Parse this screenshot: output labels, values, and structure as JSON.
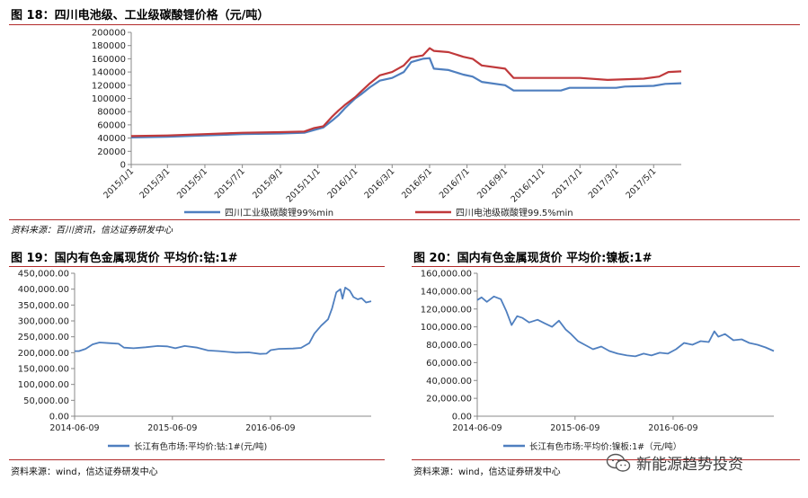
{
  "fig18": {
    "title": "图 18：四川电池级、工业级碳酸锂价格（元/吨）",
    "source": "资料来源：百川资讯，信达证券研发中心"
  },
  "fig19": {
    "title": "图 19：国内有色金属现货价 平均价:钴:1#",
    "source": "资料来源：wind，信达证券研发中心"
  },
  "fig20": {
    "title": "图 20：国内有色金属现货价 平均价:镍板:1#",
    "source": "资料来源：wind，信达证券研发中心"
  },
  "watermark": {
    "text": "新能源趋势投资"
  },
  "chart_data": [
    {
      "type": "line",
      "title": "图 18：四川电池级、工业级碳酸锂价格（元/吨）",
      "x_tick_labels": [
        "2015/1/1",
        "2015/3/1",
        "2015/5/1",
        "2015/7/1",
        "2015/9/1",
        "2015/11/1",
        "2016/1/1",
        "2016/3/1",
        "2016/5/1",
        "2016/7/1",
        "2016/9/1",
        "2016/11/1",
        "2017/1/1",
        "2017/3/1",
        "2017/5/1"
      ],
      "x_range": [
        "2015-01-01",
        "2017-06-15"
      ],
      "y_tick_labels": [
        "0",
        "20000",
        "40000",
        "60000",
        "80000",
        "100000",
        "120000",
        "140000",
        "160000",
        "180000",
        "200000"
      ],
      "ylim": [
        0,
        200000
      ],
      "grid": false,
      "legend_position": "bottom",
      "series": [
        {
          "name": "四川工业级碳酸锂99%min",
          "color": "#4f7fbf",
          "points": [
            [
              "2015-01-01",
              41000
            ],
            [
              "2015-03-01",
              42000
            ],
            [
              "2015-05-01",
              44000
            ],
            [
              "2015-07-01",
              46000
            ],
            [
              "2015-09-01",
              47000
            ],
            [
              "2015-10-10",
              48000
            ],
            [
              "2015-10-25",
              52000
            ],
            [
              "2015-11-10",
              56000
            ],
            [
              "2015-11-25",
              67000
            ],
            [
              "2015-12-05",
              75000
            ],
            [
              "2015-12-15",
              85000
            ],
            [
              "2016-01-01",
              100000
            ],
            [
              "2016-01-10",
              106000
            ],
            [
              "2016-01-25",
              117000
            ],
            [
              "2016-02-10",
              127000
            ],
            [
              "2016-03-01",
              131000
            ],
            [
              "2016-03-20",
              140000
            ],
            [
              "2016-04-01",
              155000
            ],
            [
              "2016-04-20",
              160000
            ],
            [
              "2016-05-01",
              161000
            ],
            [
              "2016-05-08",
              145000
            ],
            [
              "2016-06-01",
              143000
            ],
            [
              "2016-06-25",
              136000
            ],
            [
              "2016-07-10",
              133000
            ],
            [
              "2016-07-25",
              125000
            ],
            [
              "2016-09-01",
              120000
            ],
            [
              "2016-09-15",
              112000
            ],
            [
              "2016-12-01",
              112000
            ],
            [
              "2016-12-15",
              116000
            ],
            [
              "2017-03-01",
              116000
            ],
            [
              "2017-03-15",
              118000
            ],
            [
              "2017-05-01",
              119000
            ],
            [
              "2017-05-20",
              122000
            ],
            [
              "2017-06-15",
              123000
            ]
          ]
        },
        {
          "name": "四川电池级碳酸锂99.5%min",
          "color": "#c0393b",
          "points": [
            [
              "2015-01-01",
              43000
            ],
            [
              "2015-03-01",
              44000
            ],
            [
              "2015-05-01",
              46000
            ],
            [
              "2015-07-01",
              48000
            ],
            [
              "2015-09-01",
              49000
            ],
            [
              "2015-10-10",
              50000
            ],
            [
              "2015-10-25",
              55000
            ],
            [
              "2015-11-10",
              58000
            ],
            [
              "2015-11-25",
              73000
            ],
            [
              "2015-12-05",
              82000
            ],
            [
              "2015-12-15",
              90000
            ],
            [
              "2016-01-01",
              102000
            ],
            [
              "2016-01-10",
              110000
            ],
            [
              "2016-01-25",
              123000
            ],
            [
              "2016-02-10",
              135000
            ],
            [
              "2016-03-01",
              140000
            ],
            [
              "2016-03-20",
              150000
            ],
            [
              "2016-04-01",
              162000
            ],
            [
              "2016-04-20",
              165000
            ],
            [
              "2016-05-01",
              176000
            ],
            [
              "2016-05-08",
              172000
            ],
            [
              "2016-06-01",
              170000
            ],
            [
              "2016-06-25",
              163000
            ],
            [
              "2016-07-10",
              160000
            ],
            [
              "2016-07-25",
              150000
            ],
            [
              "2016-09-01",
              145000
            ],
            [
              "2016-09-15",
              131000
            ],
            [
              "2016-12-01",
              131000
            ],
            [
              "2017-01-01",
              131000
            ],
            [
              "2017-02-15",
              128000
            ],
            [
              "2017-04-15",
              130000
            ],
            [
              "2017-05-10",
              133000
            ],
            [
              "2017-05-25",
              140000
            ],
            [
              "2017-06-15",
              141000
            ]
          ]
        }
      ]
    },
    {
      "type": "line",
      "title": "图 19：国内有色金属现货价 平均价:钴:1#",
      "x_tick_labels": [
        "2014-06-09",
        "2015-06-09",
        "2016-06-09"
      ],
      "x_range": [
        "2014-06-09",
        "2017-06-20"
      ],
      "y_tick_labels": [
        "0.00",
        "50,000.00",
        "100,000.00",
        "150,000.00",
        "200,000.00",
        "250,000.00",
        "300,000.00",
        "350,000.00",
        "400,000.00",
        "450,000.00"
      ],
      "ylim": [
        0,
        450000
      ],
      "grid": false,
      "legend_position": "bottom",
      "series": [
        {
          "name": "长江有色市场:平均价:钴:1#(元/吨)",
          "color": "#4f7fbf",
          "points": [
            [
              "2014-06-09",
              205000
            ],
            [
              "2014-06-25",
              205000
            ],
            [
              "2014-07-20",
              212000
            ],
            [
              "2014-08-15",
              226000
            ],
            [
              "2014-09-10",
              232000
            ],
            [
              "2014-10-15",
              230000
            ],
            [
              "2014-11-20",
              228000
            ],
            [
              "2014-12-10",
              216000
            ],
            [
              "2015-01-15",
              214000
            ],
            [
              "2015-03-01",
              217000
            ],
            [
              "2015-04-15",
              221000
            ],
            [
              "2015-05-20",
              220000
            ],
            [
              "2015-06-20",
              214000
            ],
            [
              "2015-07-25",
              221000
            ],
            [
              "2015-09-10",
              216000
            ],
            [
              "2015-10-20",
              207000
            ],
            [
              "2015-12-01",
              205000
            ],
            [
              "2016-02-01",
              200000
            ],
            [
              "2016-03-20",
              201000
            ],
            [
              "2016-05-01",
              196000
            ],
            [
              "2016-05-25",
              197000
            ],
            [
              "2016-06-10",
              208000
            ],
            [
              "2016-07-10",
              212000
            ],
            [
              "2016-09-01",
              213000
            ],
            [
              "2016-10-01",
              215000
            ],
            [
              "2016-11-01",
              230000
            ],
            [
              "2016-11-20",
              260000
            ],
            [
              "2016-12-15",
              285000
            ],
            [
              "2017-01-10",
              305000
            ],
            [
              "2017-01-25",
              340000
            ],
            [
              "2017-02-10",
              390000
            ],
            [
              "2017-02-25",
              400000
            ],
            [
              "2017-03-05",
              370000
            ],
            [
              "2017-03-15",
              405000
            ],
            [
              "2017-04-01",
              395000
            ],
            [
              "2017-04-15",
              375000
            ],
            [
              "2017-05-01",
              368000
            ],
            [
              "2017-05-15",
              372000
            ],
            [
              "2017-06-01",
              358000
            ],
            [
              "2017-06-20",
              362000
            ]
          ]
        }
      ]
    },
    {
      "type": "line",
      "title": "图 20：国内有色金属现货价 平均价:镍板:1#",
      "x_tick_labels": [
        "2014-06-09",
        "2015-06-09",
        "2016-06-09"
      ],
      "x_range": [
        "2014-06-09",
        "2017-06-20"
      ],
      "y_tick_labels": [
        "0.00",
        "20,000.00",
        "40,000.00",
        "60,000.00",
        "80,000.00",
        "100,000.00",
        "120,000.00",
        "140,000.00",
        "160,000.00"
      ],
      "ylim": [
        0,
        160000
      ],
      "grid": false,
      "legend_position": "bottom",
      "series": [
        {
          "name": "长江有色市场:平均价:镍板:1#（元/吨）",
          "color": "#4f7fbf",
          "points": [
            [
              "2014-06-09",
              130000
            ],
            [
              "2014-06-25",
              133000
            ],
            [
              "2014-07-15",
              128000
            ],
            [
              "2014-08-10",
              134000
            ],
            [
              "2014-09-05",
              131000
            ],
            [
              "2014-09-25",
              118000
            ],
            [
              "2014-10-15",
              102000
            ],
            [
              "2014-11-05",
              112000
            ],
            [
              "2014-11-25",
              110000
            ],
            [
              "2014-12-20",
              105000
            ],
            [
              "2015-01-20",
              108000
            ],
            [
              "2015-02-15",
              104000
            ],
            [
              "2015-03-15",
              100000
            ],
            [
              "2015-04-10",
              107000
            ],
            [
              "2015-05-05",
              97000
            ],
            [
              "2015-05-25",
              92000
            ],
            [
              "2015-06-20",
              84000
            ],
            [
              "2015-07-15",
              80000
            ],
            [
              "2015-08-15",
              75000
            ],
            [
              "2015-09-15",
              78000
            ],
            [
              "2015-10-15",
              73000
            ],
            [
              "2015-11-15",
              70000
            ],
            [
              "2015-12-20",
              68000
            ],
            [
              "2016-01-20",
              67000
            ],
            [
              "2016-02-20",
              70000
            ],
            [
              "2016-03-20",
              68000
            ],
            [
              "2016-04-20",
              71000
            ],
            [
              "2016-05-20",
              70000
            ],
            [
              "2016-06-20",
              75000
            ],
            [
              "2016-07-20",
              82000
            ],
            [
              "2016-08-20",
              80000
            ],
            [
              "2016-09-20",
              84000
            ],
            [
              "2016-10-20",
              83000
            ],
            [
              "2016-11-10",
              95000
            ],
            [
              "2016-11-25",
              89000
            ],
            [
              "2016-12-20",
              92000
            ],
            [
              "2017-01-20",
              85000
            ],
            [
              "2017-02-20",
              86000
            ],
            [
              "2017-03-20",
              82000
            ],
            [
              "2017-04-20",
              80000
            ],
            [
              "2017-05-20",
              77000
            ],
            [
              "2017-06-20",
              73000
            ]
          ]
        }
      ]
    }
  ]
}
